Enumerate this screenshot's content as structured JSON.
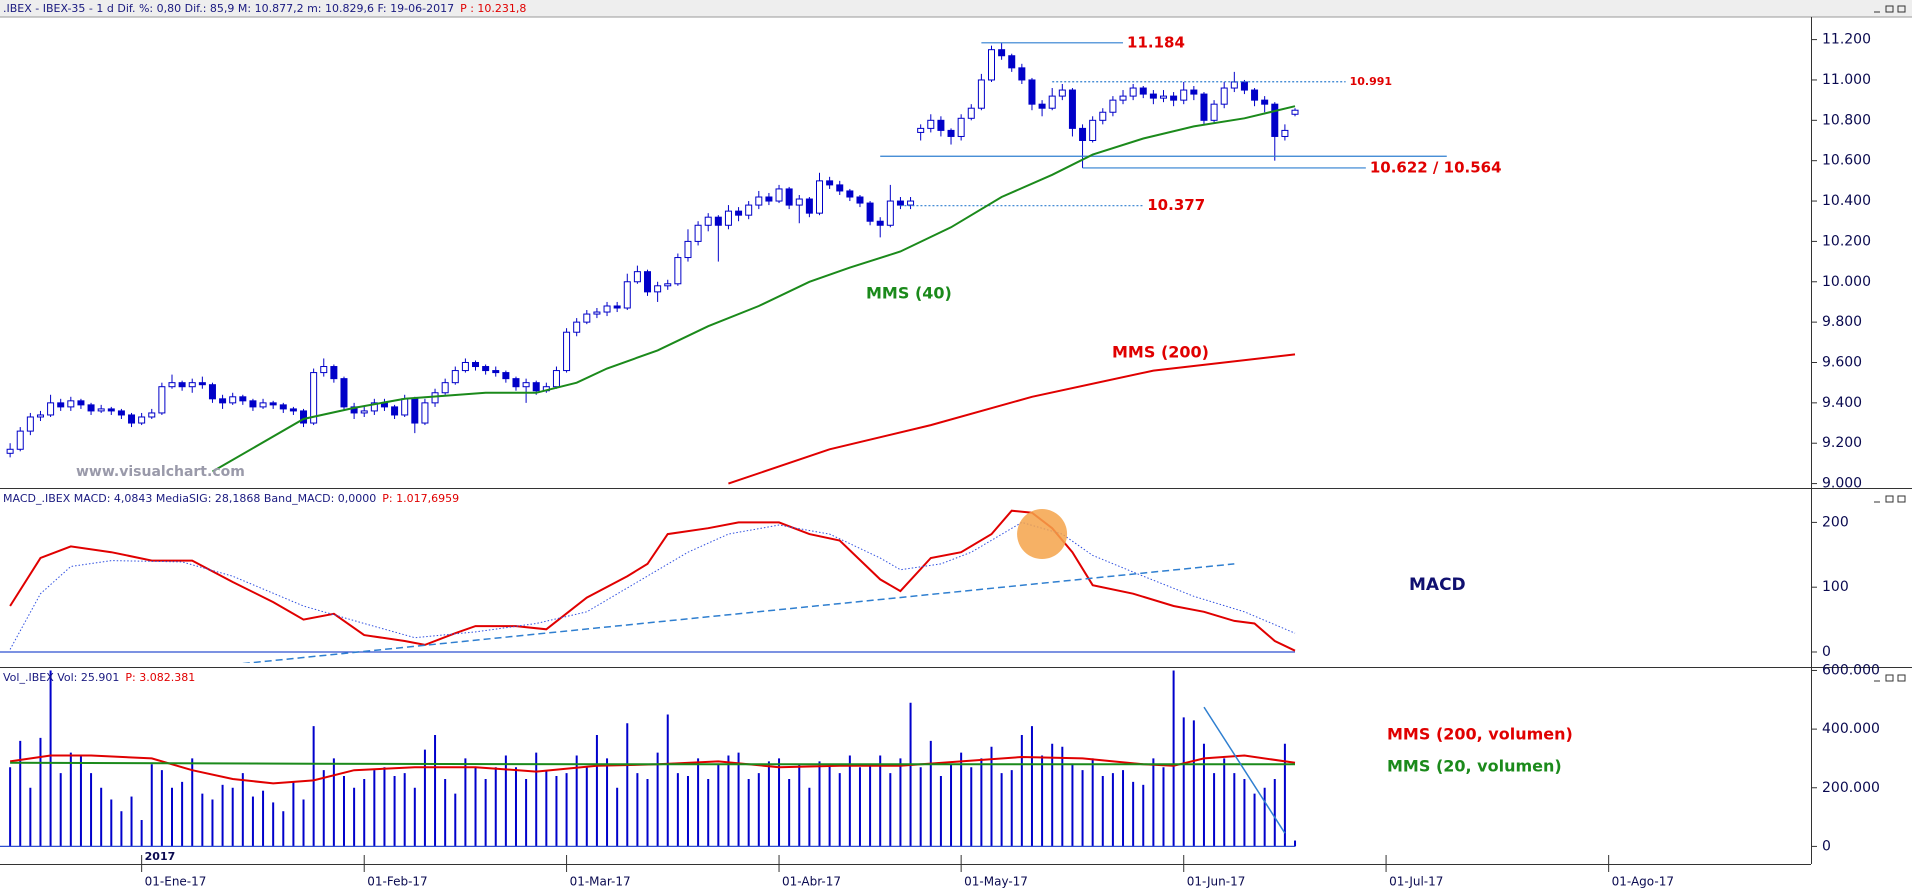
{
  "chart_data": [
    {
      "type": "candlestick",
      "header": [
        {
          "text": ".IBEX - IBEX-35 - 1 d  Dif. %: 0,80  Dif.: 85,9  M: 10.877,2  m: 10.829,6  F: 19-06-2017",
          "color": "#1a1a80"
        },
        {
          "text": "P : 10.231,8",
          "color": "#e00000"
        }
      ],
      "xlim": [
        -1,
        178
      ],
      "ylim": [
        8988,
        11307
      ],
      "yticks": [
        {
          "value": 9000,
          "label": "9.000"
        },
        {
          "value": 9200,
          "label": "9.200"
        },
        {
          "value": 9400,
          "label": "9.400"
        },
        {
          "value": 9600,
          "label": "9.600"
        },
        {
          "value": 9800,
          "label": "9.800"
        },
        {
          "value": 10000,
          "label": "10.000"
        },
        {
          "value": 10200,
          "label": "10.200"
        },
        {
          "value": 10400,
          "label": "10.400"
        },
        {
          "value": 10600,
          "label": "10.600"
        },
        {
          "value": 10800,
          "label": "10.800"
        },
        {
          "value": 11000,
          "label": "11.000"
        },
        {
          "value": 11200,
          "label": "11.200"
        }
      ],
      "color": "#0000c8",
      "open": [
        9150,
        9170,
        9260,
        9330,
        9340,
        9400,
        9380,
        9410,
        9390,
        9360,
        9370,
        9360,
        9340,
        9300,
        9330,
        9350,
        9480,
        9500,
        9480,
        9500,
        9490,
        9420,
        9400,
        9430,
        9410,
        9380,
        9400,
        9390,
        9370,
        9360,
        9300,
        9550,
        9580,
        9520,
        9380,
        9350,
        9360,
        9400,
        9380,
        9340,
        9420,
        9300,
        9400,
        9450,
        9500,
        9560,
        9600,
        9580,
        9560,
        9550,
        9520,
        9480,
        9500,
        9460,
        9480,
        9560,
        9750,
        9800,
        9840,
        9850,
        9880,
        9870,
        10000,
        10050,
        9950,
        9980,
        9990,
        10120,
        10200,
        10280,
        10320,
        10280,
        10350,
        10330,
        10380,
        10420,
        10400,
        10460,
        10380,
        10410,
        10340,
        10500,
        10480,
        10450,
        10420,
        10390,
        10300,
        10280,
        10400,
        10380,
        10740,
        10760,
        10800,
        10750,
        10720,
        10810,
        10860,
        11000,
        11150,
        11120,
        11060,
        11000,
        10880,
        10860,
        10920,
        10950,
        10760,
        10700,
        10800,
        10840,
        10900,
        10920,
        10960,
        10930,
        10910,
        10920,
        10900,
        10950,
        10930,
        10800,
        10880,
        10960,
        10990,
        10950,
        10900,
        10880,
        10720,
        10830
      ],
      "high": [
        9200,
        9280,
        9350,
        9360,
        9440,
        9420,
        9430,
        9420,
        9400,
        9390,
        9380,
        9370,
        9350,
        9350,
        9370,
        9500,
        9540,
        9510,
        9520,
        9530,
        9500,
        9440,
        9450,
        9440,
        9420,
        9420,
        9410,
        9400,
        9380,
        9370,
        9570,
        9620,
        9590,
        9530,
        9400,
        9380,
        9420,
        9420,
        9390,
        9440,
        9430,
        9420,
        9470,
        9520,
        9580,
        9620,
        9610,
        9590,
        9580,
        9560,
        9530,
        9520,
        9510,
        9500,
        9580,
        9770,
        9820,
        9860,
        9870,
        9900,
        9900,
        10040,
        10080,
        10060,
        10000,
        10010,
        10140,
        10260,
        10300,
        10340,
        10330,
        10380,
        10370,
        10400,
        10450,
        10440,
        10480,
        10470,
        10430,
        10420,
        10540,
        10520,
        10500,
        10460,
        10430,
        10400,
        10320,
        10480,
        10420,
        10420,
        10780,
        10830,
        10820,
        10760,
        10830,
        10880,
        11030,
        11170,
        11184,
        11130,
        11080,
        11010,
        10900,
        10960,
        10980,
        10960,
        10780,
        10820,
        10860,
        10920,
        10950,
        10980,
        10970,
        10950,
        10950,
        10940,
        10990,
        10970,
        10940,
        10900,
        10990,
        11040,
        11000,
        10960,
        10920,
        10890,
        10780,
        10860
      ],
      "low": [
        9130,
        9160,
        9240,
        9310,
        9330,
        9360,
        9360,
        9370,
        9340,
        9350,
        9340,
        9320,
        9280,
        9290,
        9320,
        9340,
        9470,
        9460,
        9450,
        9470,
        9400,
        9370,
        9390,
        9390,
        9360,
        9370,
        9370,
        9350,
        9340,
        9280,
        9290,
        9530,
        9500,
        9360,
        9320,
        9330,
        9340,
        9360,
        9320,
        9330,
        9250,
        9290,
        9380,
        9440,
        9490,
        9550,
        9560,
        9540,
        9530,
        9500,
        9460,
        9400,
        9440,
        9450,
        9470,
        9550,
        9730,
        9790,
        9820,
        9830,
        9850,
        9860,
        9990,
        9930,
        9900,
        9960,
        9980,
        10100,
        10180,
        10250,
        10100,
        10260,
        10300,
        10310,
        10360,
        10380,
        10390,
        10360,
        10290,
        10320,
        10330,
        10460,
        10430,
        10400,
        10370,
        10280,
        10220,
        10270,
        10360,
        10360,
        10700,
        10740,
        10720,
        10680,
        10700,
        10800,
        10850,
        10990,
        11100,
        11040,
        10980,
        10850,
        10820,
        10850,
        10900,
        10720,
        10564,
        10690,
        10780,
        10820,
        10880,
        10900,
        10910,
        10880,
        10890,
        10870,
        10880,
        10900,
        10780,
        10790,
        10860,
        10940,
        10930,
        10870,
        10840,
        10600,
        10700,
        10820
      ],
      "close": [
        9170,
        9260,
        9330,
        9340,
        9400,
        9380,
        9410,
        9390,
        9360,
        9370,
        9360,
        9340,
        9300,
        9330,
        9350,
        9480,
        9500,
        9480,
        9500,
        9490,
        9420,
        9400,
        9430,
        9410,
        9380,
        9400,
        9390,
        9370,
        9360,
        9300,
        9550,
        9580,
        9520,
        9380,
        9350,
        9360,
        9400,
        9380,
        9340,
        9420,
        9300,
        9400,
        9450,
        9500,
        9560,
        9600,
        9580,
        9560,
        9550,
        9520,
        9480,
        9500,
        9460,
        9480,
        9560,
        9750,
        9800,
        9840,
        9850,
        9880,
        9870,
        10000,
        10050,
        9950,
        9980,
        9990,
        10120,
        10200,
        10280,
        10320,
        10280,
        10350,
        10330,
        10380,
        10420,
        10400,
        10460,
        10380,
        10410,
        10340,
        10500,
        10480,
        10450,
        10420,
        10390,
        10300,
        10280,
        10400,
        10380,
        10400,
        10760,
        10800,
        10750,
        10720,
        10810,
        10860,
        11000,
        11150,
        11120,
        11060,
        11000,
        10880,
        10860,
        10920,
        10950,
        10760,
        10700,
        10800,
        10840,
        10900,
        10920,
        10960,
        10930,
        10910,
        10920,
        10900,
        10950,
        10930,
        10800,
        10880,
        10960,
        10990,
        10950,
        10900,
        10880,
        10720,
        10750,
        10850
      ],
      "series": [
        {
          "name": "MMS (40)",
          "color": "#1b8a1b",
          "x": [
            20,
            29,
            34,
            39,
            47,
            52,
            56,
            59,
            64,
            69,
            74,
            79,
            83,
            88,
            93,
            98,
            103,
            107,
            112,
            117,
            122,
            127
          ],
          "values": [
            9060,
            9320,
            9375,
            9420,
            9450,
            9450,
            9500,
            9570,
            9660,
            9780,
            9880,
            10000,
            10070,
            10150,
            10270,
            10420,
            10530,
            10630,
            10710,
            10770,
            10810,
            10870
          ]
        },
        {
          "name": "MMS (200)",
          "color": "#e00000",
          "x": [
            71,
            81,
            91,
            101,
            113,
            127
          ],
          "values": [
            9000,
            9170,
            9290,
            9430,
            9560,
            9640
          ]
        }
      ],
      "levels": [
        {
          "value": 11184,
          "x": [
            96,
            110
          ],
          "color": "#2f7fd0",
          "label": "11.184"
        },
        {
          "value": 10991,
          "x": [
            103,
            132
          ],
          "color": "#2f7fd0",
          "dash": true,
          "label": "10.991",
          "label_size": "small"
        },
        {
          "value": 10377,
          "x": [
            88,
            112
          ],
          "color": "#2f7fd0",
          "dash": true,
          "label": "10.377"
        },
        {
          "value": 10622,
          "x": [
            86,
            142
          ],
          "color": "#2f7fd0"
        },
        {
          "value": 10564,
          "x": [
            106,
            134
          ],
          "color": "#2f7fd0",
          "label": "10.622 / 10.564"
        }
      ],
      "watermark": "www.visualchart.com"
    },
    {
      "type": "line",
      "header": [
        {
          "text": "MACD_.IBEX  MACD: 4,0843  MediaSIG: 28,1868  Band_MACD: 0,0000",
          "color": "#1a1a80"
        },
        {
          "text": "P: 1.017,6959",
          "color": "#e00000"
        }
      ],
      "xlim": [
        -1,
        178
      ],
      "ylim": [
        -17,
        250
      ],
      "yticks": [
        0,
        100,
        200
      ],
      "series": [
        {
          "color": "#e00000",
          "x": [
            0,
            3,
            6,
            10,
            14,
            18,
            22,
            26,
            29,
            32,
            35,
            39,
            41,
            44,
            46,
            50,
            53,
            57,
            61,
            63,
            65,
            69,
            72,
            76,
            79,
            82,
            86,
            88,
            91,
            94,
            97,
            99,
            101,
            103,
            105,
            107,
            111,
            115,
            118,
            121,
            123,
            125,
            127
          ],
          "values": [
            71,
            145,
            163,
            154,
            141,
            141,
            108,
            77,
            50,
            59,
            26,
            17,
            11,
            29,
            40,
            40,
            35,
            84,
            117,
            136,
            182,
            191,
            200,
            200,
            182,
            172,
            112,
            94,
            145,
            154,
            182,
            218,
            215,
            191,
            154,
            103,
            90,
            71,
            62,
            48,
            44,
            17,
            2
          ]
        },
        {
          "color": "#3050e0",
          "dash": true,
          "x": [
            0,
            3,
            6,
            10,
            17,
            22,
            29,
            35,
            40,
            46,
            52,
            57,
            62,
            67,
            71,
            76,
            81,
            86,
            88,
            92,
            95,
            100,
            104,
            107,
            112,
            117,
            122,
            127
          ],
          "values": [
            4,
            90,
            132,
            141,
            139,
            117,
            71,
            44,
            22,
            31,
            44,
            62,
            108,
            154,
            182,
            196,
            182,
            145,
            127,
            136,
            154,
            200,
            182,
            149,
            117,
            86,
            62,
            29
          ]
        }
      ],
      "levels": [
        {
          "value": 0,
          "x": [
            -1,
            127
          ],
          "color": "#2f50d0"
        }
      ],
      "trendline": {
        "x": [
          23,
          121
        ],
        "values": [
          -18,
          136
        ],
        "color": "#2f7fd0",
        "dash": true
      },
      "highlight": {
        "x": 102,
        "value": 182,
        "color": "#f5a34a"
      },
      "annotation": "MACD"
    },
    {
      "type": "bar",
      "header": [
        {
          "text": "Vol_.IBEX  Vol: 25.901",
          "color": "#1a1a80"
        },
        {
          "text": "P: 3.082.381",
          "color": "#e00000"
        }
      ],
      "xlim": [
        -1,
        178
      ],
      "ylim": [
        -60000,
        605000
      ],
      "yticks": [
        0,
        {
          "value": 200000,
          "label": "200.000"
        },
        {
          "value": 400000,
          "label": "400.000"
        },
        {
          "value": 600000,
          "label": "600.000"
        }
      ],
      "xticks": [
        {
          "value": 13,
          "label": "01-Ene-17"
        },
        {
          "value": 35,
          "label": "01-Feb-17"
        },
        {
          "value": 55,
          "label": "01-Mar-17"
        },
        {
          "value": 76,
          "label": "01-Abr-17"
        },
        {
          "value": 94,
          "label": "01-May-17"
        },
        {
          "value": 116,
          "label": "01-Jun-17"
        },
        {
          "value": 136,
          "label": "01-Jul-17"
        },
        {
          "value": 158,
          "label": "01-Ago-17"
        }
      ],
      "year_label": "2017",
      "color": "#0000cc",
      "values": [
        270000,
        360000,
        200000,
        370000,
        600000,
        250000,
        320000,
        310000,
        250000,
        200000,
        160000,
        120000,
        170000,
        90000,
        280000,
        260000,
        200000,
        220000,
        300000,
        180000,
        160000,
        210000,
        200000,
        250000,
        170000,
        190000,
        150000,
        120000,
        220000,
        160000,
        410000,
        260000,
        300000,
        240000,
        200000,
        230000,
        260000,
        270000,
        240000,
        250000,
        200000,
        330000,
        380000,
        230000,
        180000,
        300000,
        270000,
        230000,
        270000,
        310000,
        270000,
        230000,
        320000,
        260000,
        240000,
        250000,
        310000,
        270000,
        380000,
        300000,
        200000,
        420000,
        250000,
        230000,
        320000,
        450000,
        250000,
        240000,
        300000,
        230000,
        280000,
        310000,
        320000,
        230000,
        250000,
        290000,
        300000,
        230000,
        280000,
        200000,
        290000,
        280000,
        250000,
        310000,
        270000,
        280000,
        310000,
        250000,
        300000,
        490000,
        270000,
        360000,
        240000,
        280000,
        320000,
        270000,
        300000,
        340000,
        250000,
        260000,
        380000,
        410000,
        310000,
        350000,
        340000,
        280000,
        260000,
        300000,
        240000,
        250000,
        260000,
        220000,
        210000,
        300000,
        270000,
        600000,
        440000,
        430000,
        350000,
        250000,
        300000,
        250000,
        230000,
        180000,
        200000,
        230000,
        350000,
        20000
      ],
      "series": [
        {
          "name": "MMS (200, volumen)",
          "color": "#e00000",
          "x": [
            0,
            4,
            8,
            14,
            18,
            22,
            26,
            30,
            34,
            40,
            46,
            52,
            58,
            64,
            70,
            76,
            82,
            88,
            94,
            100,
            106,
            112,
            115,
            118,
            122,
            127
          ],
          "values": [
            290000,
            310000,
            310000,
            300000,
            260000,
            230000,
            215000,
            225000,
            260000,
            270000,
            270000,
            255000,
            275000,
            280000,
            290000,
            270000,
            275000,
            275000,
            290000,
            305000,
            300000,
            280000,
            275000,
            300000,
            310000,
            285000
          ]
        },
        {
          "name": "MMS (20, volumen)",
          "color": "#1b8a1b",
          "x": [
            0,
            30,
            60,
            90,
            127
          ],
          "values": [
            285000,
            282000,
            280000,
            280000,
            280000
          ]
        }
      ],
      "levels": [
        {
          "value": 0,
          "x": [
            -1,
            127
          ],
          "color": "#2f50d0"
        }
      ],
      "trendline": {
        "x": [
          118,
          126
        ],
        "values": [
          475000,
          45000
        ],
        "color": "#2f7fd0"
      }
    }
  ]
}
